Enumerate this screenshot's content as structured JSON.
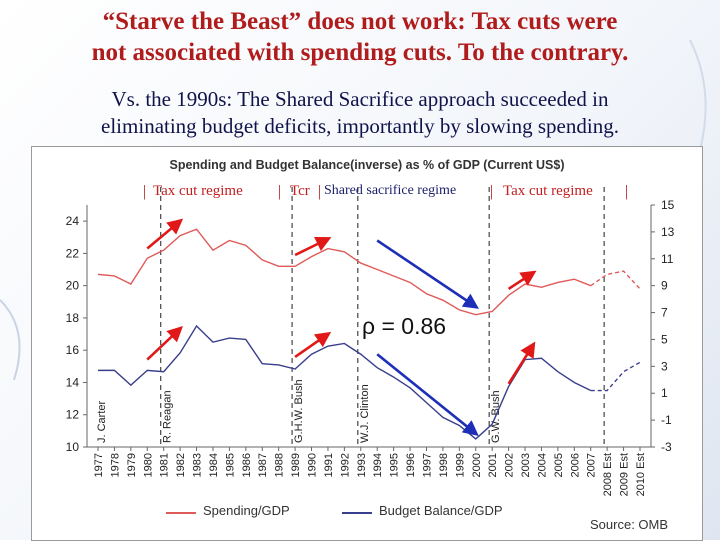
{
  "slide": {
    "title_line1": "“Starve the Beast” does not work: Tax cuts were",
    "title_line2": "not associated with spending cuts. To the contrary.",
    "subtitle_line1": "Vs. the 1990s: The Shared Sacrifice approach succeeded in",
    "subtitle_line2": "eliminating budget deficits, importantly by slowing spending."
  },
  "annotations": {
    "regimes": [
      "Tax cut regime",
      "Tcr",
      "Shared sacrifice regime",
      "Tax cut regime"
    ],
    "rho": "ρ = 0.86",
    "presidents": [
      "J. Carter",
      "R. Reagan",
      "G.H.W. Bush",
      "W.J. Clinton",
      "G.W. Bush"
    ],
    "colors": {
      "arrow_red": "#e01818",
      "arrow_blue": "#1d2fb8",
      "regime_text": "#c22020"
    }
  },
  "legend": {
    "spending": "Spending/GDP",
    "balance": "Budget Balance/GDP"
  },
  "source": "Source:    OMB",
  "chart_data": {
    "type": "line",
    "title": "Spending and Budget Balance(inverse) as % of GDP (Current US$)",
    "categories": [
      "1977",
      "1978",
      "1979",
      "1980",
      "1981",
      "1982",
      "1983",
      "1984",
      "1985",
      "1986",
      "1987",
      "1988",
      "1989",
      "1990",
      "1991",
      "1992",
      "1993",
      "1994",
      "1995",
      "1996",
      "1997",
      "1998",
      "1999",
      "2000",
      "2001",
      "2002",
      "2003",
      "2004",
      "2005",
      "2006",
      "2007",
      "2008 Est",
      "2009 Est",
      "2010 Est"
    ],
    "series": [
      {
        "name": "Spending/GDP",
        "axis": "left",
        "color": "#e05a5a",
        "values": [
          20.7,
          20.6,
          20.1,
          21.7,
          22.2,
          23.1,
          23.5,
          22.2,
          22.8,
          22.5,
          21.6,
          21.2,
          21.2,
          21.8,
          22.3,
          22.1,
          21.4,
          21.0,
          20.6,
          20.2,
          19.5,
          19.1,
          18.5,
          18.2,
          18.4,
          19.4,
          20.1,
          19.9,
          20.2,
          20.4,
          20.0,
          20.7,
          20.9,
          19.8
        ]
      },
      {
        "name": "Budget Balance/GDP",
        "axis": "right",
        "color": "#3a3f8c",
        "values": [
          2.7,
          2.7,
          1.6,
          2.7,
          2.6,
          4.0,
          6.0,
          4.8,
          5.1,
          5.0,
          3.2,
          3.1,
          2.8,
          3.9,
          4.5,
          4.7,
          3.9,
          2.9,
          2.2,
          1.4,
          0.3,
          -0.8,
          -1.4,
          -2.4,
          -1.3,
          1.5,
          3.5,
          3.6,
          2.6,
          1.8,
          1.2,
          1.2,
          2.6,
          3.3
        ]
      }
    ],
    "estimate_from_index": 31,
    "left_axis": {
      "ylim": [
        10,
        25
      ],
      "ticks": [
        10,
        12,
        14,
        16,
        18,
        20,
        22,
        24
      ]
    },
    "right_axis": {
      "ylim": [
        -3,
        15
      ],
      "ticks": [
        -3,
        -1,
        1,
        3,
        5,
        7,
        9,
        11,
        13,
        15
      ]
    },
    "president_start_years": [
      "1977",
      "1981",
      "1989",
      "1993",
      "2001"
    ],
    "regime_boundaries": [
      "1981",
      "1989",
      "1993",
      "2001",
      "2008 Est"
    ],
    "legend_position": "bottom",
    "grid": false
  }
}
